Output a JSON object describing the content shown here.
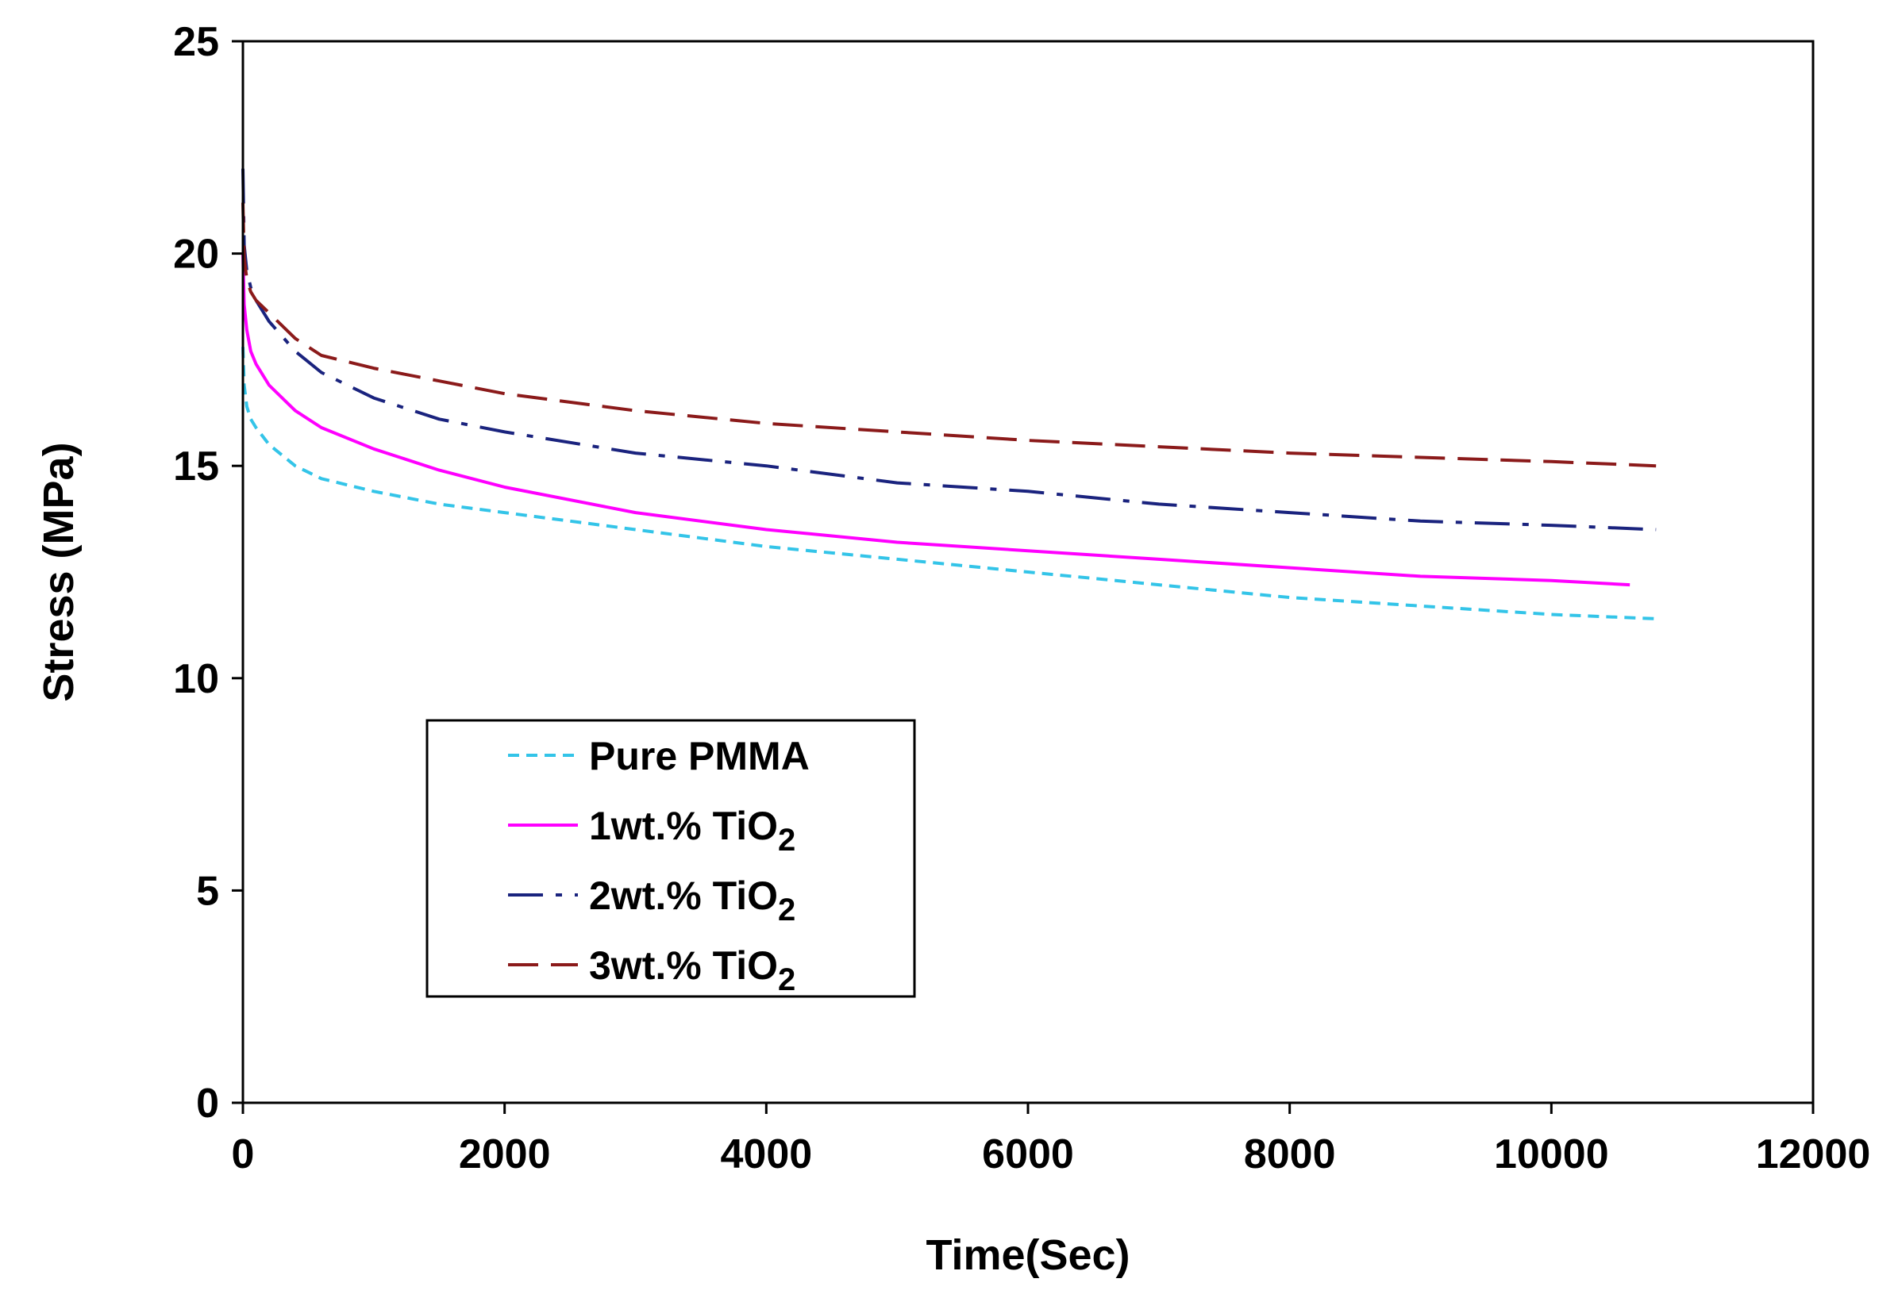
{
  "chart_data": {
    "type": "line",
    "title": "",
    "xlabel": "Time(Sec)",
    "ylabel": "Stress (MPa)",
    "xlim": [
      0,
      12000
    ],
    "ylim": [
      0,
      25
    ],
    "x_ticks": [
      0,
      2000,
      4000,
      6000,
      8000,
      10000,
      12000
    ],
    "y_ticks": [
      0,
      5,
      10,
      15,
      20,
      25
    ],
    "x_tick_labels": [
      "0",
      "2000",
      "4000",
      "6000",
      "8000",
      "10000",
      "12000"
    ],
    "y_tick_labels": [
      "0",
      "5",
      "10",
      "15",
      "20",
      "25"
    ],
    "grid": false,
    "legend_position": "lower-left",
    "series": [
      {
        "name": "Pure PMMA",
        "legend_label": "Pure PMMA",
        "legend_sub": "",
        "color": "#33c4e8",
        "dash": "dotted",
        "x": [
          0,
          10,
          30,
          60,
          100,
          200,
          400,
          600,
          1000,
          1500,
          2000,
          3000,
          4000,
          5000,
          6000,
          7000,
          8000,
          9000,
          10000,
          10800
        ],
        "y": [
          17.8,
          16.9,
          16.4,
          16.1,
          15.9,
          15.5,
          15.0,
          14.7,
          14.4,
          14.1,
          13.9,
          13.5,
          13.1,
          12.8,
          12.5,
          12.2,
          11.9,
          11.7,
          11.5,
          11.4
        ]
      },
      {
        "name": "1wt.% TiO2",
        "legend_label": "1wt.% TiO",
        "legend_sub": "2",
        "color": "#ff00ff",
        "dash": "solid",
        "x": [
          0,
          10,
          30,
          60,
          100,
          200,
          400,
          600,
          1000,
          1500,
          2000,
          3000,
          4000,
          5000,
          6000,
          7000,
          8000,
          9000,
          10000,
          10600
        ],
        "y": [
          20.0,
          18.8,
          18.2,
          17.7,
          17.4,
          16.9,
          16.3,
          15.9,
          15.4,
          14.9,
          14.5,
          13.9,
          13.5,
          13.2,
          13.0,
          12.8,
          12.6,
          12.4,
          12.3,
          12.2
        ]
      },
      {
        "name": "2wt.% TiO2",
        "legend_label": "2wt.% TiO",
        "legend_sub": "2",
        "color": "#1a237e",
        "dash": "dashdot",
        "x": [
          0,
          10,
          30,
          60,
          100,
          200,
          400,
          600,
          1000,
          1500,
          2000,
          3000,
          4000,
          5000,
          6000,
          7000,
          8000,
          9000,
          10000,
          10800
        ],
        "y": [
          22.0,
          20.2,
          19.6,
          19.2,
          18.9,
          18.4,
          17.7,
          17.2,
          16.6,
          16.1,
          15.8,
          15.3,
          15.0,
          14.6,
          14.4,
          14.1,
          13.9,
          13.7,
          13.6,
          13.5
        ]
      },
      {
        "name": "3wt.% TiO2",
        "legend_label": "3wt.% TiO",
        "legend_sub": "2",
        "color": "#8b1a1a",
        "dash": "dashed",
        "x": [
          0,
          10,
          30,
          60,
          100,
          200,
          400,
          600,
          1000,
          1500,
          2000,
          3000,
          4000,
          5000,
          6000,
          7000,
          8000,
          9000,
          10000,
          10800
        ],
        "y": [
          21.2,
          19.9,
          19.4,
          19.1,
          18.9,
          18.6,
          18.0,
          17.6,
          17.3,
          17.0,
          16.7,
          16.3,
          16.0,
          15.8,
          15.6,
          15.45,
          15.3,
          15.2,
          15.1,
          15.0
        ]
      }
    ]
  }
}
